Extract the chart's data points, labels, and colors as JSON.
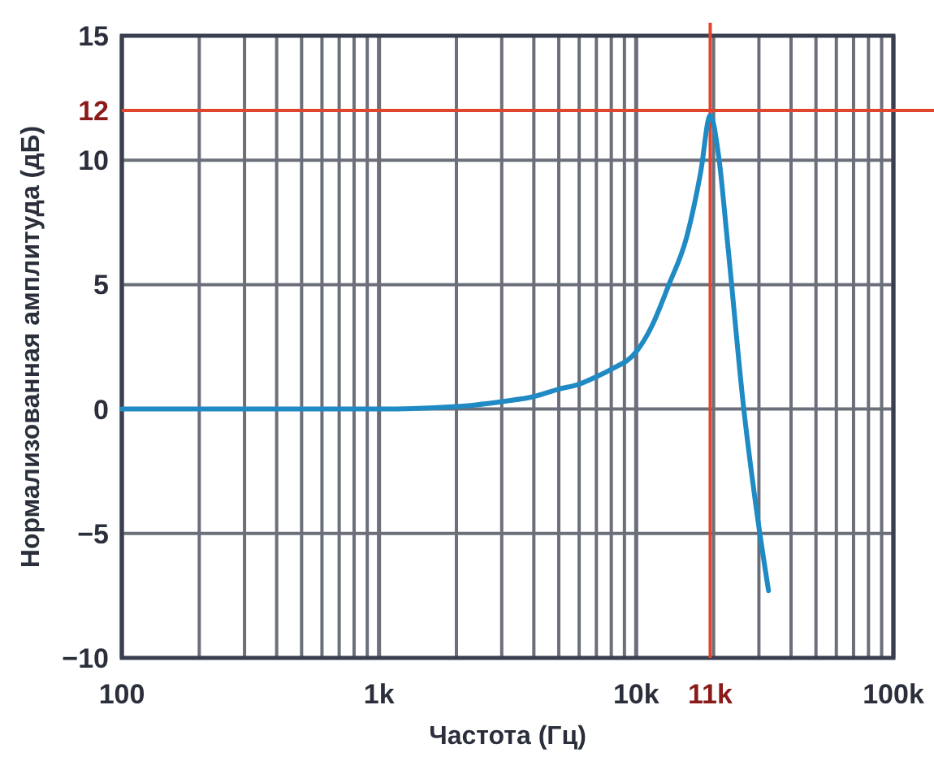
{
  "chart_data": {
    "type": "line",
    "xlabel": "Частота (Гц)",
    "ylabel": "Нормализованная амплитуда (дБ)",
    "log": "x",
    "grid": true,
    "xlim": [
      100,
      100000
    ],
    "xticks": [
      {
        "value": 100,
        "label": "100"
      },
      {
        "value": 1000,
        "label": "1k"
      },
      {
        "value": 10000,
        "label": "10k"
      },
      {
        "value": 100000,
        "label": "100k"
      }
    ],
    "ylim": [
      -10,
      15
    ],
    "yticks": [
      {
        "value": -10,
        "label": "−10"
      },
      {
        "value": -5,
        "label": "−5"
      },
      0,
      5,
      10,
      15
    ],
    "ref_lines": [
      {
        "axis": "x",
        "value": 19400,
        "label": "11k",
        "color": "#e0452e"
      },
      {
        "axis": "y",
        "value": 12,
        "label": "12",
        "color": "#e0452e"
      }
    ],
    "series": [
      {
        "color": "#1f8ac4",
        "x": [
          100,
          1000,
          2000,
          3000,
          4000,
          5000,
          6000,
          7000,
          8000,
          10000,
          11460,
          13400,
          15700,
          17800,
          19400,
          20900,
          22700,
          26200,
          29400,
          32700
        ],
        "values": [
          0,
          0,
          0.1,
          0.3,
          0.5,
          0.8,
          1.0,
          1.3,
          1.6,
          2.3,
          3.3,
          5.0,
          6.9,
          9.5,
          11.8,
          10.2,
          6.6,
          0,
          -4.1,
          -7.3
        ]
      }
    ]
  }
}
